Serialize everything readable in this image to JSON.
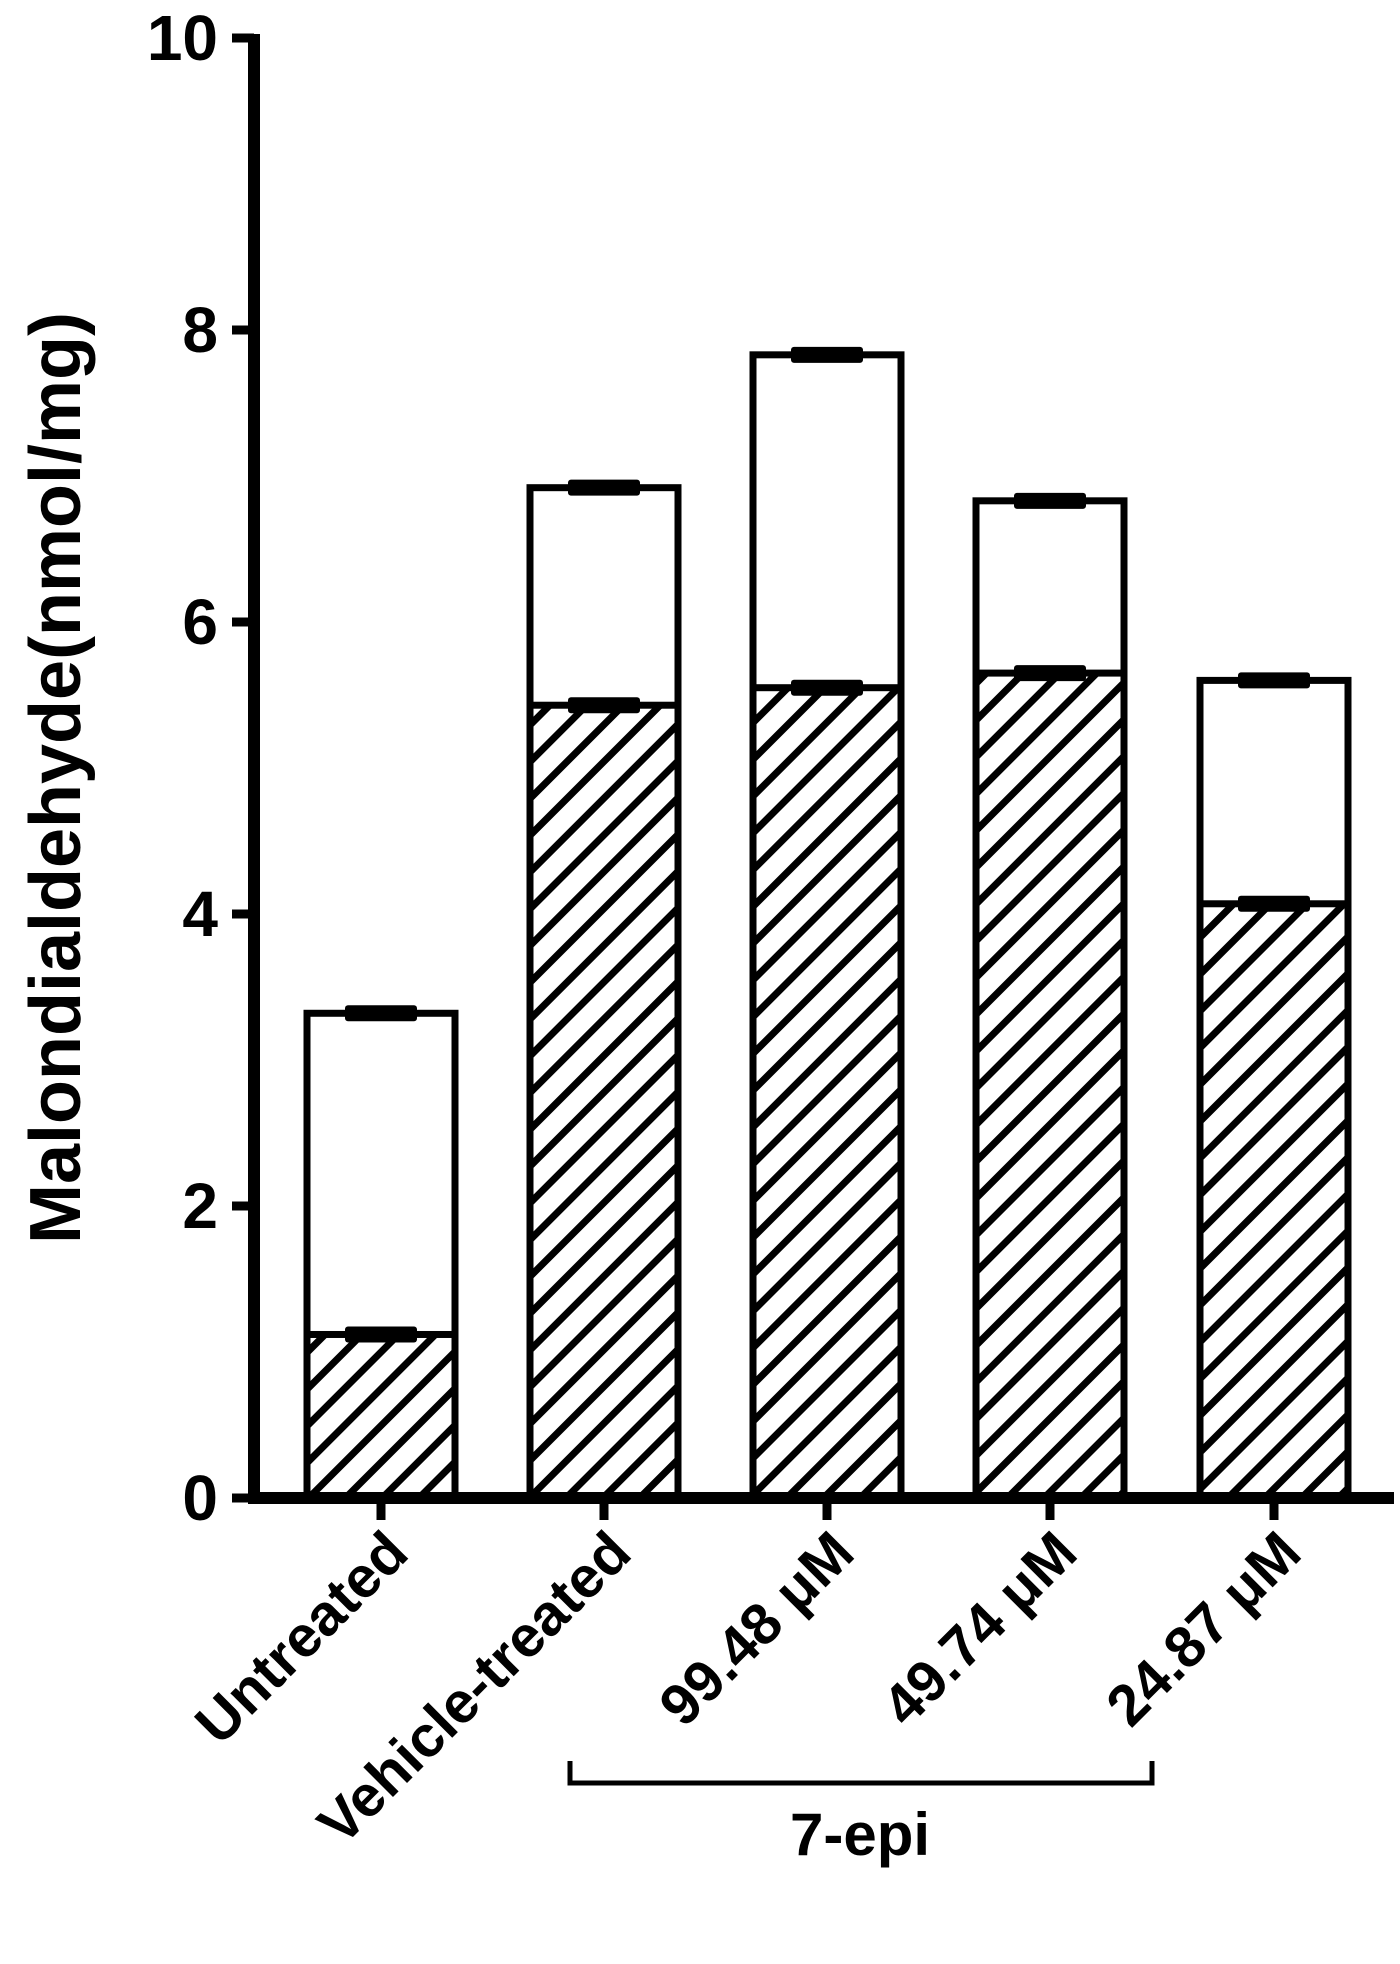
{
  "chart_data": {
    "type": "bar",
    "stacked": false,
    "overlaid": true,
    "ylabel": "Malondialdehyde(nmol/mg)",
    "ylim": [
      0,
      10
    ],
    "yticks": [
      "0",
      "2",
      "4",
      "6",
      "8",
      "10"
    ],
    "categories": [
      "Untreated",
      "Vehicle-treated",
      "99.48 μM",
      "49.74 μM",
      "24.87 μM"
    ],
    "group_bracket": {
      "label": "7-epi",
      "categories": [
        "99.48 μM",
        "49.74 μM",
        "24.87 μM"
      ]
    },
    "series": [
      {
        "pattern": "white",
        "values": [
          3.32,
          6.92,
          7.83,
          6.83,
          5.6
        ],
        "errors": [
          0.05,
          0.05,
          0.05,
          0.05,
          0.05
        ]
      },
      {
        "pattern": "hatched",
        "values": [
          1.12,
          5.43,
          5.55,
          5.65,
          4.07
        ],
        "errors": [
          0.05,
          0.05,
          0.05,
          0.05,
          0.05
        ]
      }
    ],
    "grid": false,
    "colors": {
      "axis": "#000000",
      "bar_fill": "#ffffff",
      "hatch": "#000000"
    }
  }
}
